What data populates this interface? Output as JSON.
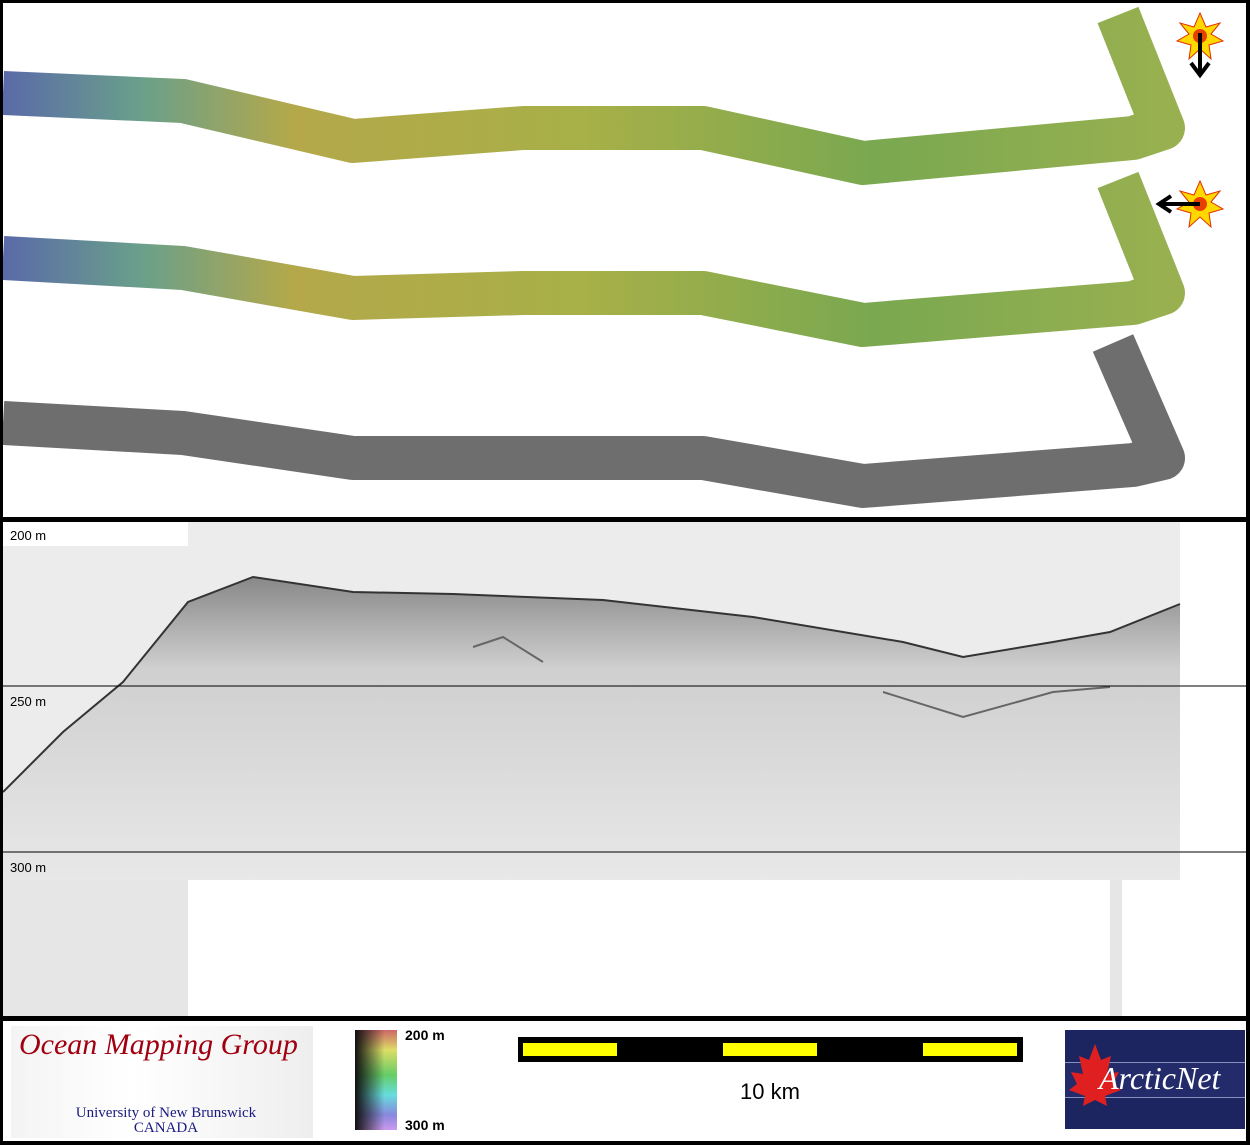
{
  "swath_panel": {
    "swaths": [
      "shaded-relief-sun-north",
      "shaded-relief-sun-east",
      "backscatter"
    ],
    "sun_icons": [
      {
        "icon": "sun-icon",
        "arrow": "arrow-down-icon"
      },
      {
        "icon": "sun-icon",
        "arrow": "arrow-left-icon"
      }
    ],
    "colors": {
      "west": "#5a6aa8",
      "mid": "#b4b04a",
      "east": "#6aa050",
      "backscatter": "#707070"
    }
  },
  "profile_panel": {
    "depth_labels": [
      "200 m",
      "250 m",
      "300 m"
    ]
  },
  "footer": {
    "omg_logo": {
      "title": "Ocean Mapping Group",
      "line1": "University of New Brunswick",
      "line2": "CANADA"
    },
    "colorbar": {
      "top_label": "200 m",
      "bottom_label": "300 m"
    },
    "scale_bar": {
      "label": "10 km",
      "segment_colors": [
        "#ffff00",
        "#000000"
      ]
    },
    "arcticnet_logo": {
      "text": "ArcticNet"
    }
  }
}
